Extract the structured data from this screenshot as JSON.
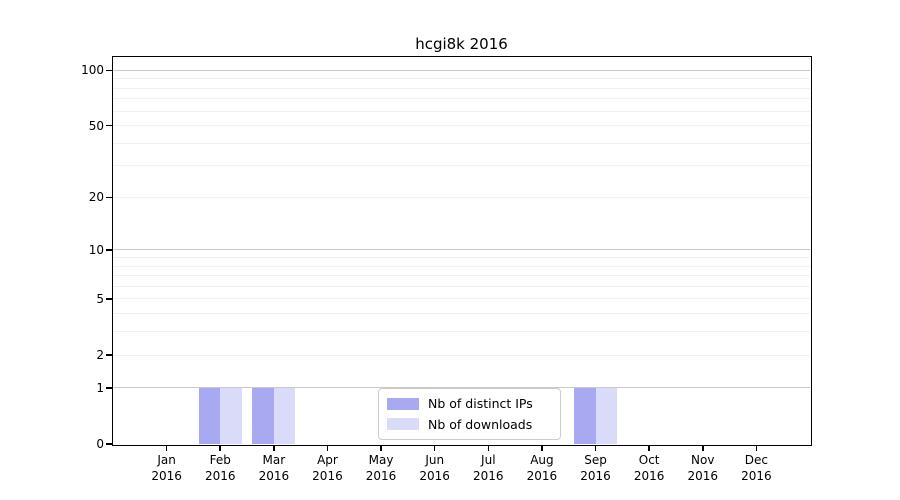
{
  "figure": {
    "background": "#ffffff"
  },
  "chart_data": {
    "type": "bar",
    "title": "hcgi8k 2016",
    "x_categories": [
      {
        "month": "Jan",
        "year": "2016"
      },
      {
        "month": "Feb",
        "year": "2016"
      },
      {
        "month": "Mar",
        "year": "2016"
      },
      {
        "month": "Apr",
        "year": "2016"
      },
      {
        "month": "May",
        "year": "2016"
      },
      {
        "month": "Jun",
        "year": "2016"
      },
      {
        "month": "Jul",
        "year": "2016"
      },
      {
        "month": "Aug",
        "year": "2016"
      },
      {
        "month": "Sep",
        "year": "2016"
      },
      {
        "month": "Oct",
        "year": "2016"
      },
      {
        "month": "Nov",
        "year": "2016"
      },
      {
        "month": "Dec",
        "year": "2016"
      }
    ],
    "series": [
      {
        "name": "Nb of distinct IPs",
        "color": "#a9a9f2",
        "values": [
          0,
          1,
          1,
          0,
          0,
          0,
          0,
          0,
          1,
          0,
          0,
          0
        ]
      },
      {
        "name": "Nb of downloads",
        "color": "#dadaf9",
        "values": [
          0,
          1,
          1,
          0,
          0,
          0,
          0,
          0,
          1,
          0,
          0,
          0
        ]
      }
    ],
    "y_axis": {
      "scale": "log1p",
      "ticks": [
        0,
        1,
        2,
        5,
        10,
        20,
        50,
        100
      ],
      "major_gridlines": [
        1,
        10,
        100
      ],
      "range": [
        0,
        118
      ]
    },
    "xlabel": "",
    "ylabel": "",
    "grid": "on",
    "legend_position": "lower center inside"
  }
}
